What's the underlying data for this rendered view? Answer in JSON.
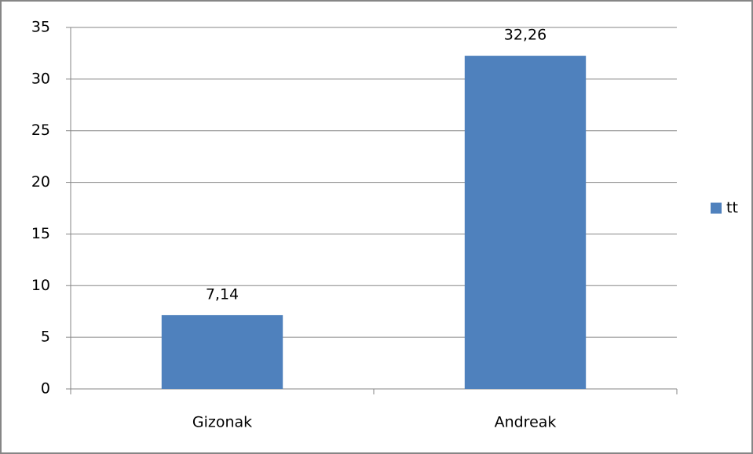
{
  "chart_data": {
    "type": "bar",
    "categories": [
      "Gizonak",
      "Andreak"
    ],
    "series": [
      {
        "name": "tt",
        "color": "#4f81bd",
        "values": [
          7.14,
          32.26
        ],
        "value_labels": [
          "7,14",
          "32,26"
        ]
      }
    ],
    "ylim": [
      0,
      35
    ],
    "yticks": [
      0,
      5,
      10,
      15,
      20,
      25,
      30,
      35
    ],
    "grid": true,
    "legend": "right"
  }
}
